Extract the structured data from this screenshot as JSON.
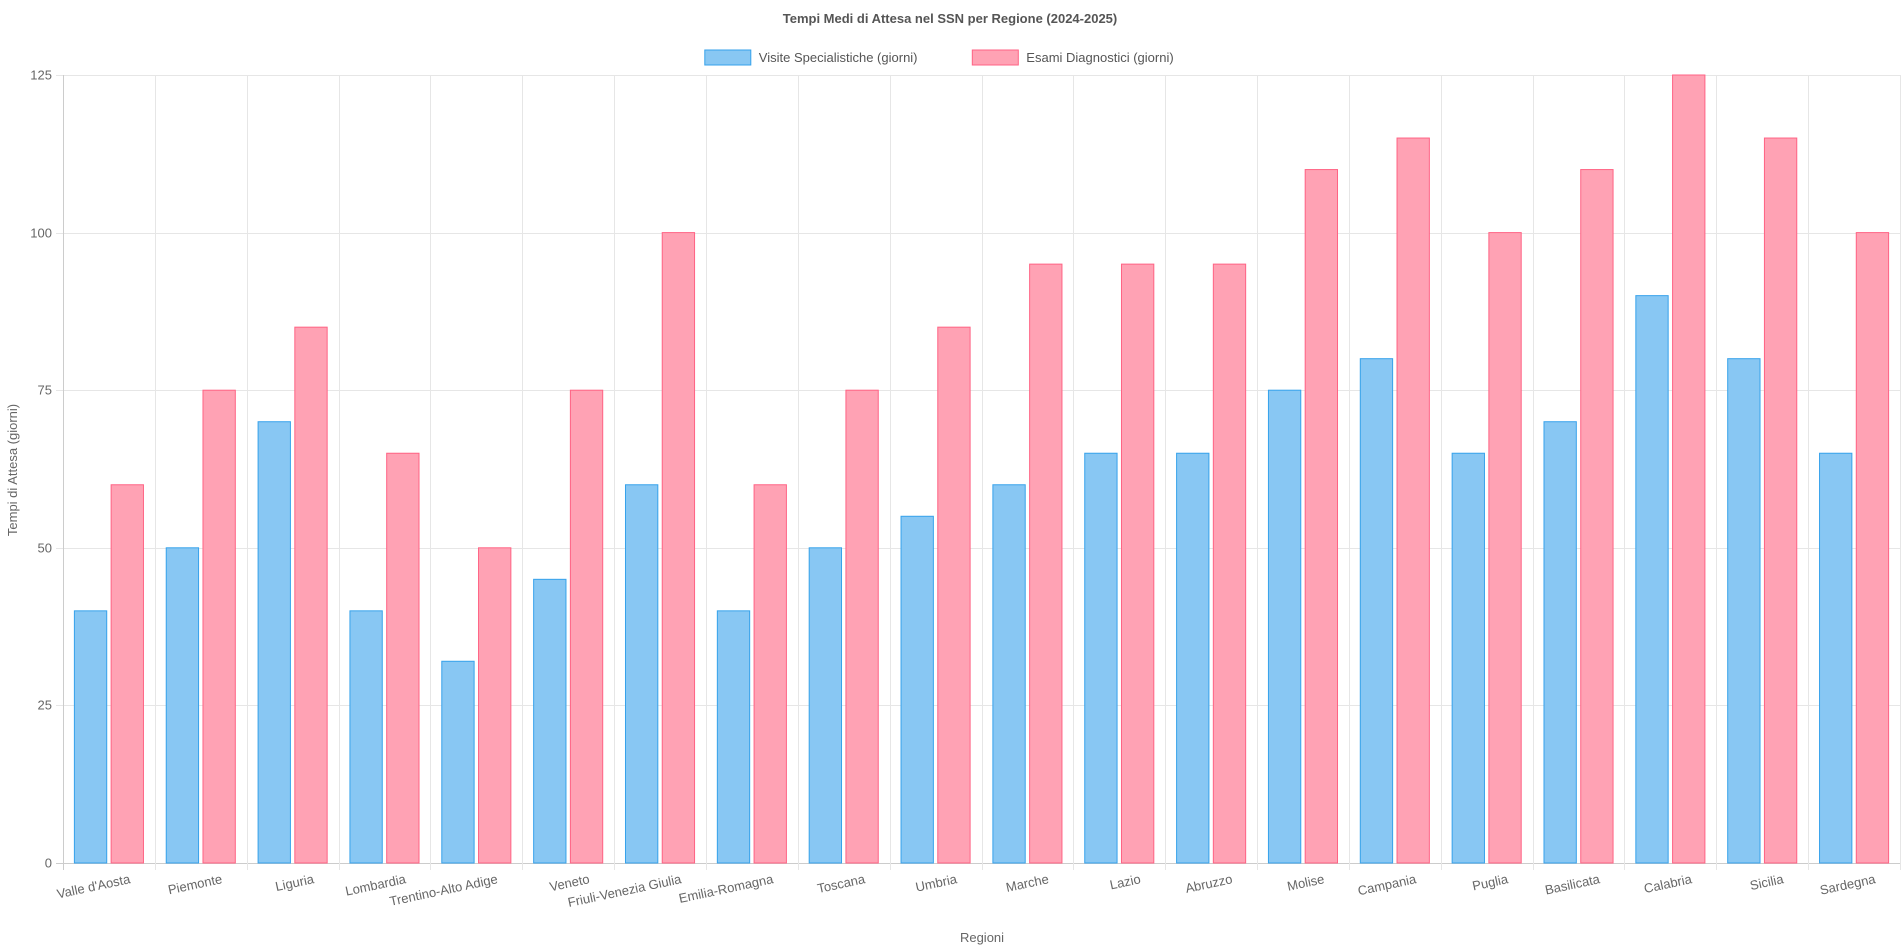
{
  "chart_data": {
    "type": "bar",
    "title": "Tempi Medi di Attesa nel SSN per Regione (2024-2025)",
    "xlabel": "Regioni",
    "ylabel": "Tempi di Attesa (giorni)",
    "ylim": [
      0,
      125
    ],
    "yticks": [
      0,
      25,
      50,
      75,
      100,
      125
    ],
    "grid": true,
    "legend_position": "top-center",
    "categories": [
      "Valle d'Aosta",
      "Piemonte",
      "Liguria",
      "Lombardia",
      "Trentino-Alto Adige",
      "Veneto",
      "Friuli-Venezia Giulia",
      "Emilia-Romagna",
      "Toscana",
      "Umbria",
      "Marche",
      "Lazio",
      "Abruzzo",
      "Molise",
      "Campania",
      "Puglia",
      "Basilicata",
      "Calabria",
      "Sicilia",
      "Sardegna"
    ],
    "series": [
      {
        "name": "Visite Specialistiche (giorni)",
        "fill": "#88c7f3",
        "stroke": "#36a2eb",
        "values": [
          40,
          50,
          70,
          40,
          32,
          45,
          60,
          40,
          50,
          55,
          60,
          65,
          65,
          75,
          80,
          65,
          70,
          90,
          80,
          65
        ]
      },
      {
        "name": "Esami Diagnostici (giorni)",
        "fill": "#ffa2b4",
        "stroke": "#ff6384",
        "values": [
          60,
          75,
          85,
          65,
          50,
          75,
          100,
          60,
          75,
          85,
          95,
          95,
          95,
          110,
          115,
          100,
          110,
          125,
          115,
          100
        ]
      }
    ]
  }
}
